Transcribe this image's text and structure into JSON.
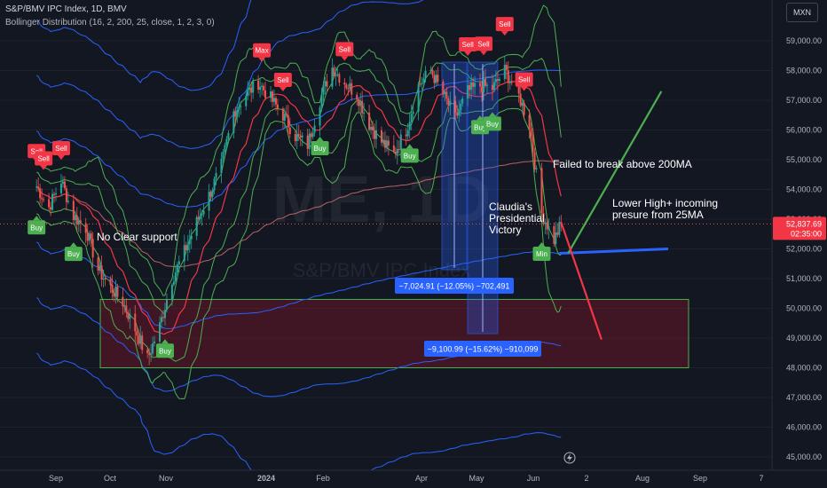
{
  "header": {
    "title": "S&P/BMV IPC Index, 1D, BMV",
    "indicator": "Bollinger Distribution (16, 2, 200, 25, close, 1, 2, 3, 0)"
  },
  "currency_button": "MXN",
  "watermark": {
    "symbol": "ME, 1D",
    "name": "S&P/BMV IPC Index"
  },
  "price_badge": {
    "value": "52,837.69",
    "countdown": "02:35:00"
  },
  "colors": {
    "background": "#131722",
    "up_candle": "#26a69a",
    "down_candle": "#ef5350",
    "band_green": "#4caf50",
    "band_blue": "#2962ff",
    "ma_red": "#f23645",
    "projection_up": "#4caf50",
    "projection_down": "#f23645",
    "support_line": "#2962ff"
  },
  "chart_data": {
    "type": "candlestick",
    "y_axis_ticks": [
      "59,000.00",
      "58,000.00",
      "57,000.00",
      "56,000.00",
      "55,000.00",
      "54,000.00",
      "53,000.00",
      "52,000.00",
      "51,000.00",
      "50,000.00",
      "49,000.00",
      "48,000.00",
      "47,000.00",
      "46,000.00",
      "45,000.00"
    ],
    "x_axis_ticks": [
      "Sep",
      "Oct",
      "Nov",
      "2024",
      "Feb",
      "Apr",
      "May",
      "Jun",
      "2",
      "Aug",
      "Sep",
      "7"
    ],
    "ylim": [
      44700,
      60300
    ],
    "close_path": [
      {
        "date": "2023-08-21",
        "close": 54100
      },
      {
        "date": "2023-08-28",
        "close": 53400
      },
      {
        "date": "2023-09-04",
        "close": 54300
      },
      {
        "date": "2023-09-11",
        "close": 53100
      },
      {
        "date": "2023-09-18",
        "close": 52700
      },
      {
        "date": "2023-09-25",
        "close": 51300
      },
      {
        "date": "2023-10-02",
        "close": 50700
      },
      {
        "date": "2023-10-09",
        "close": 50200
      },
      {
        "date": "2023-10-16",
        "close": 49300
      },
      {
        "date": "2023-10-23",
        "close": 48300
      },
      {
        "date": "2023-10-30",
        "close": 49400
      },
      {
        "date": "2023-11-06",
        "close": 51000
      },
      {
        "date": "2023-11-13",
        "close": 51900
      },
      {
        "date": "2023-11-20",
        "close": 52900
      },
      {
        "date": "2023-11-27",
        "close": 53800
      },
      {
        "date": "2023-12-04",
        "close": 54800
      },
      {
        "date": "2023-12-11",
        "close": 56600
      },
      {
        "date": "2023-12-18",
        "close": 57200
      },
      {
        "date": "2023-12-25",
        "close": 57600
      },
      {
        "date": "2024-01-08",
        "close": 56500
      },
      {
        "date": "2024-01-15",
        "close": 55800
      },
      {
        "date": "2024-01-22",
        "close": 55500
      },
      {
        "date": "2024-01-29",
        "close": 57000
      },
      {
        "date": "2024-02-05",
        "close": 58100
      },
      {
        "date": "2024-02-12",
        "close": 57600
      },
      {
        "date": "2024-02-19",
        "close": 57200
      },
      {
        "date": "2024-02-26",
        "close": 56200
      },
      {
        "date": "2024-03-04",
        "close": 55600
      },
      {
        "date": "2024-03-11",
        "close": 55200
      },
      {
        "date": "2024-03-18",
        "close": 56000
      },
      {
        "date": "2024-03-25",
        "close": 57500
      },
      {
        "date": "2024-04-01",
        "close": 58000
      },
      {
        "date": "2024-04-08",
        "close": 57200
      },
      {
        "date": "2024-04-15",
        "close": 56400
      },
      {
        "date": "2024-04-22",
        "close": 57300
      },
      {
        "date": "2024-04-29",
        "close": 57500
      },
      {
        "date": "2024-05-06",
        "close": 57400
      },
      {
        "date": "2024-05-13",
        "close": 58000
      },
      {
        "date": "2024-05-20",
        "close": 57300
      },
      {
        "date": "2024-05-27",
        "close": 56200
      },
      {
        "date": "2024-06-03",
        "close": 53200
      },
      {
        "date": "2024-06-10",
        "close": 52300
      },
      {
        "date": "2024-06-14",
        "close": 52837.69
      }
    ],
    "signals": [
      {
        "label": "Sell",
        "type": "sell",
        "date": "2023-08-21"
      },
      {
        "label": "Sell",
        "type": "sell",
        "date": "2023-08-25"
      },
      {
        "label": "Sell",
        "type": "sell",
        "date": "2023-09-04"
      },
      {
        "label": "Buy",
        "type": "buy",
        "date": "2023-08-21"
      },
      {
        "label": "Buy",
        "type": "buy",
        "date": "2023-09-11"
      },
      {
        "label": "Buy",
        "type": "buy",
        "date": "2023-11-02"
      },
      {
        "label": "Max",
        "type": "sell",
        "date": "2023-12-27"
      },
      {
        "label": "Sell",
        "type": "sell",
        "date": "2024-01-08"
      },
      {
        "label": "Sell",
        "type": "sell",
        "date": "2024-02-12"
      },
      {
        "label": "Buy",
        "type": "buy",
        "date": "2024-01-29"
      },
      {
        "label": "Buy",
        "type": "buy",
        "date": "2024-03-20"
      },
      {
        "label": "Sell",
        "type": "sell",
        "date": "2024-04-22"
      },
      {
        "label": "Sell",
        "type": "sell",
        "date": "2024-05-01"
      },
      {
        "label": "Buy",
        "type": "buy",
        "date": "2024-04-29"
      },
      {
        "label": "Buy",
        "type": "buy",
        "date": "2024-05-06"
      },
      {
        "label": "Sell",
        "type": "sell",
        "date": "2024-05-13"
      },
      {
        "label": "Sell",
        "type": "sell",
        "date": "2024-05-24"
      },
      {
        "label": "Min",
        "type": "buy",
        "date": "2024-06-03"
      }
    ],
    "annotations": [
      {
        "text": "No Clear support"
      },
      {
        "text": "Failed to break above 200MA"
      },
      {
        "text": "Lower High+ incoming\npresure from 25MA"
      },
      {
        "text": "Claudia's\nPresidential\nVictory"
      }
    ],
    "measurements": [
      {
        "text": "−7,024.91 (−12.05%) −702,491"
      },
      {
        "text": "−9,100.99 (−15.62%) −910,099"
      }
    ],
    "support_zone": [
      48000,
      50300
    ],
    "support_level": 51850
  }
}
